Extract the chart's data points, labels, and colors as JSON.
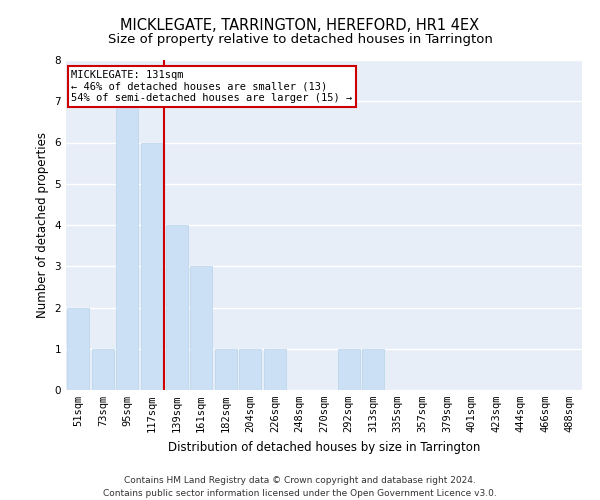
{
  "title": "MICKLEGATE, TARRINGTON, HEREFORD, HR1 4EX",
  "subtitle": "Size of property relative to detached houses in Tarrington",
  "xlabel": "Distribution of detached houses by size in Tarrington",
  "ylabel": "Number of detached properties",
  "categories": [
    "51sqm",
    "73sqm",
    "95sqm",
    "117sqm",
    "139sqm",
    "161sqm",
    "182sqm",
    "204sqm",
    "226sqm",
    "248sqm",
    "270sqm",
    "292sqm",
    "313sqm",
    "335sqm",
    "357sqm",
    "379sqm",
    "401sqm",
    "423sqm",
    "444sqm",
    "466sqm",
    "488sqm"
  ],
  "values": [
    2,
    1,
    7,
    6,
    4,
    3,
    1,
    1,
    1,
    0,
    0,
    1,
    1,
    0,
    0,
    0,
    0,
    0,
    0,
    0,
    0
  ],
  "bar_color": "#cce0f5",
  "bar_edge_color": "#b8d4ea",
  "property_index": 3,
  "property_label": "MICKLEGATE: 131sqm",
  "annotation_line1": "← 46% of detached houses are smaller (13)",
  "annotation_line2": "54% of semi-detached houses are larger (15) →",
  "vline_color": "#cc0000",
  "box_edge_color": "#cc0000",
  "ylim": [
    0,
    8
  ],
  "yticks": [
    0,
    1,
    2,
    3,
    4,
    5,
    6,
    7,
    8
  ],
  "fig_bg_color": "#ffffff",
  "axes_bg_color": "#e8eef8",
  "grid_color": "#ffffff",
  "footer": "Contains HM Land Registry data © Crown copyright and database right 2024.\nContains public sector information licensed under the Open Government Licence v3.0.",
  "title_fontsize": 10.5,
  "subtitle_fontsize": 9.5,
  "xlabel_fontsize": 8.5,
  "ylabel_fontsize": 8.5,
  "tick_fontsize": 7.5,
  "annotation_fontsize": 7.5,
  "footer_fontsize": 6.5
}
